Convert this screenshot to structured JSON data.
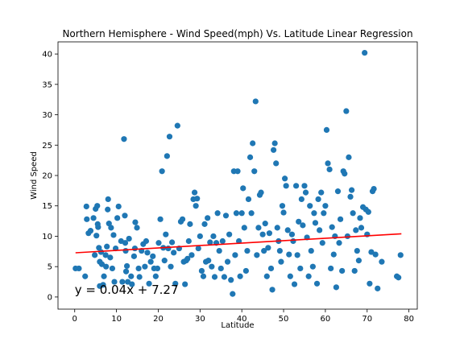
{
  "chart_data": {
    "type": "scatter",
    "title": "Northern Hemisphere - Wind Speed(mph) Vs. Latitude Linear Regression",
    "xlabel": "Latitude",
    "ylabel": "Wind Speed",
    "xlim": [
      -4,
      82
    ],
    "ylim": [
      -2,
      42
    ],
    "xticks": [
      0,
      10,
      20,
      30,
      40,
      50,
      60,
      70,
      80
    ],
    "yticks": [
      0,
      5,
      10,
      15,
      20,
      25,
      30,
      35,
      40
    ],
    "grid": false,
    "marker_color": "#1f77b4",
    "line_color": "#ff0000",
    "annotation": {
      "text": "y = 0.04x + 7.27",
      "x": 0,
      "y": 0.5
    },
    "regression": {
      "slope": 0.04,
      "intercept": 7.27,
      "x_range": [
        0.2,
        78.2
      ]
    },
    "series": [
      {
        "points": [
          [
            0.2,
            4.7
          ],
          [
            1.0,
            4.7
          ],
          [
            2.5,
            3.4
          ],
          [
            2.8,
            14.9
          ],
          [
            2.9,
            12.8
          ],
          [
            3.3,
            10.5
          ],
          [
            3.8,
            10.9
          ],
          [
            4.5,
            13.0
          ],
          [
            4.8,
            6.9
          ],
          [
            5.0,
            14.5
          ],
          [
            5.2,
            10.1
          ],
          [
            5.4,
            15.0
          ],
          [
            5.5,
            12.0
          ],
          [
            5.6,
            11.5
          ],
          [
            5.8,
            8.1
          ],
          [
            6.0,
            5.8
          ],
          [
            6.0,
            1.8
          ],
          [
            6.3,
            7.4
          ],
          [
            6.5,
            5.4
          ],
          [
            6.8,
            2.0
          ],
          [
            7.0,
            3.4
          ],
          [
            7.4,
            6.9
          ],
          [
            7.5,
            5.0
          ],
          [
            7.7,
            8.3
          ],
          [
            7.9,
            14.4
          ],
          [
            8.0,
            16.1
          ],
          [
            8.2,
            12.1
          ],
          [
            8.5,
            6.5
          ],
          [
            8.7,
            11.4
          ],
          [
            9.0,
            4.7
          ],
          [
            9.3,
            10.2
          ],
          [
            9.5,
            2.5
          ],
          [
            9.8,
            8.0
          ],
          [
            10.2,
            13.0
          ],
          [
            10.5,
            14.9
          ],
          [
            11.1,
            9.2
          ],
          [
            11.4,
            2.5
          ],
          [
            11.8,
            26.0
          ],
          [
            12.0,
            13.4
          ],
          [
            12.1,
            8.9
          ],
          [
            12.2,
            7.6
          ],
          [
            12.3,
            4.2
          ],
          [
            12.5,
            5.1
          ],
          [
            12.7,
            2.5
          ],
          [
            13.0,
            9.6
          ],
          [
            13.5,
            3.4
          ],
          [
            13.7,
            2.1
          ],
          [
            14.2,
            6.7
          ],
          [
            14.4,
            8.0
          ],
          [
            14.5,
            12.3
          ],
          [
            14.9,
            11.4
          ],
          [
            15.3,
            4.7
          ],
          [
            15.5,
            3.3
          ],
          [
            16.0,
            7.6
          ],
          [
            16.4,
            8.7
          ],
          [
            16.8,
            5.0
          ],
          [
            17.1,
            9.2
          ],
          [
            17.4,
            7.3
          ],
          [
            17.8,
            2.2
          ],
          [
            18.2,
            5.8
          ],
          [
            18.7,
            6.7
          ],
          [
            19.0,
            4.7
          ],
          [
            19.4,
            3.4
          ],
          [
            19.8,
            4.7
          ],
          [
            20.1,
            8.9
          ],
          [
            20.5,
            12.8
          ],
          [
            20.9,
            20.7
          ],
          [
            21.2,
            8.1
          ],
          [
            21.5,
            6.0
          ],
          [
            21.8,
            10.3
          ],
          [
            22.1,
            23.2
          ],
          [
            22.4,
            8.0
          ],
          [
            22.7,
            26.4
          ],
          [
            23.0,
            5.0
          ],
          [
            23.3,
            9.0
          ],
          [
            23.7,
            7.3
          ],
          [
            24.1,
            2.2
          ],
          [
            24.6,
            28.2
          ],
          [
            25.0,
            8.0
          ],
          [
            25.4,
            12.4
          ],
          [
            25.8,
            12.8
          ],
          [
            26.1,
            5.8
          ],
          [
            26.4,
            2.1
          ],
          [
            26.7,
            6.0
          ],
          [
            27.0,
            6.3
          ],
          [
            27.3,
            9.2
          ],
          [
            27.6,
            12.0
          ],
          [
            28.0,
            6.9
          ],
          [
            28.4,
            16.1
          ],
          [
            28.7,
            17.2
          ],
          [
            29.0,
            15.0
          ],
          [
            29.3,
            16.2
          ],
          [
            29.6,
            8.0
          ],
          [
            30.0,
            10.0
          ],
          [
            30.4,
            4.3
          ],
          [
            30.8,
            3.4
          ],
          [
            31.1,
            12.0
          ],
          [
            31.4,
            5.8
          ],
          [
            31.8,
            13.0
          ],
          [
            32.0,
            6.0
          ],
          [
            32.4,
            9.0
          ],
          [
            32.8,
            5.0
          ],
          [
            33.2,
            10.0
          ],
          [
            33.5,
            3.3
          ],
          [
            33.9,
            8.9
          ],
          [
            34.2,
            13.8
          ],
          [
            34.6,
            7.6
          ],
          [
            35.0,
            4.7
          ],
          [
            35.4,
            9.2
          ],
          [
            35.8,
            3.3
          ],
          [
            36.2,
            13.4
          ],
          [
            36.6,
            5.8
          ],
          [
            37.0,
            10.3
          ],
          [
            37.4,
            2.8
          ],
          [
            37.8,
            0.5
          ],
          [
            38.1,
            20.7
          ],
          [
            38.4,
            6.9
          ],
          [
            38.7,
            13.8
          ],
          [
            39.0,
            20.7
          ],
          [
            39.3,
            9.2
          ],
          [
            39.6,
            3.4
          ],
          [
            40.0,
            13.8
          ],
          [
            40.3,
            17.9
          ],
          [
            40.6,
            11.4
          ],
          [
            41.0,
            4.3
          ],
          [
            41.3,
            7.6
          ],
          [
            41.6,
            16.1
          ],
          [
            42.0,
            23.0
          ],
          [
            42.3,
            13.8
          ],
          [
            42.6,
            25.3
          ],
          [
            43.0,
            20.7
          ],
          [
            43.3,
            32.2
          ],
          [
            43.6,
            6.9
          ],
          [
            44.0,
            11.4
          ],
          [
            44.3,
            16.8
          ],
          [
            44.6,
            17.2
          ],
          [
            45.0,
            10.3
          ],
          [
            45.3,
            7.6
          ],
          [
            45.6,
            12.1
          ],
          [
            46.0,
            3.4
          ],
          [
            46.3,
            8.1
          ],
          [
            46.6,
            10.5
          ],
          [
            47.0,
            4.7
          ],
          [
            47.3,
            1.2
          ],
          [
            47.6,
            24.2
          ],
          [
            47.9,
            25.3
          ],
          [
            48.2,
            22.0
          ],
          [
            48.5,
            11.4
          ],
          [
            48.8,
            9.2
          ],
          [
            49.1,
            7.6
          ],
          [
            49.4,
            5.8
          ],
          [
            49.7,
            15.0
          ],
          [
            50.0,
            13.9
          ],
          [
            50.3,
            19.5
          ],
          [
            50.6,
            18.3
          ],
          [
            51.0,
            11.0
          ],
          [
            51.3,
            7.0
          ],
          [
            51.6,
            3.4
          ],
          [
            52.0,
            10.3
          ],
          [
            52.3,
            9.2
          ],
          [
            52.6,
            2.1
          ],
          [
            53.0,
            18.3
          ],
          [
            53.3,
            6.9
          ],
          [
            53.6,
            12.4
          ],
          [
            54.0,
            4.7
          ],
          [
            54.3,
            16.1
          ],
          [
            54.6,
            11.8
          ],
          [
            55.0,
            18.3
          ],
          [
            55.3,
            17.2
          ],
          [
            55.6,
            9.8
          ],
          [
            56.0,
            3.4
          ],
          [
            56.3,
            15.0
          ],
          [
            56.6,
            7.6
          ],
          [
            57.0,
            5.0
          ],
          [
            57.3,
            13.8
          ],
          [
            57.6,
            12.2
          ],
          [
            58.0,
            2.2
          ],
          [
            58.3,
            16.1
          ],
          [
            58.6,
            11.0
          ],
          [
            59.0,
            17.2
          ],
          [
            59.3,
            8.9
          ],
          [
            59.6,
            13.8
          ],
          [
            60.0,
            15.0
          ],
          [
            60.3,
            27.5
          ],
          [
            60.6,
            22.0
          ],
          [
            61.0,
            21.0
          ],
          [
            61.3,
            4.7
          ],
          [
            61.6,
            11.5
          ],
          [
            62.0,
            7.0
          ],
          [
            62.3,
            10.0
          ],
          [
            62.6,
            1.6
          ],
          [
            63.0,
            17.4
          ],
          [
            63.3,
            8.9
          ],
          [
            63.6,
            12.8
          ],
          [
            64.0,
            4.3
          ],
          [
            64.3,
            20.7
          ],
          [
            64.6,
            20.3
          ],
          [
            65.0,
            30.6
          ],
          [
            65.3,
            10.0
          ],
          [
            65.6,
            23.0
          ],
          [
            66.0,
            16.5
          ],
          [
            66.3,
            17.6
          ],
          [
            66.6,
            13.8
          ],
          [
            67.0,
            4.3
          ],
          [
            67.3,
            11.0
          ],
          [
            67.6,
            7.6
          ],
          [
            68.0,
            6.0
          ],
          [
            68.3,
            13.0
          ],
          [
            68.6,
            11.4
          ],
          [
            69.0,
            14.8
          ],
          [
            69.4,
            40.2
          ],
          [
            69.7,
            14.4
          ],
          [
            70.0,
            10.3
          ],
          [
            70.3,
            14.0
          ],
          [
            70.6,
            2.2
          ],
          [
            71.0,
            7.4
          ],
          [
            71.3,
            17.4
          ],
          [
            71.6,
            17.8
          ],
          [
            72.0,
            7.0
          ],
          [
            72.5,
            1.4
          ],
          [
            73.5,
            5.8
          ],
          [
            77.1,
            3.4
          ],
          [
            77.5,
            3.2
          ],
          [
            78.0,
            6.9
          ]
        ]
      }
    ]
  }
}
